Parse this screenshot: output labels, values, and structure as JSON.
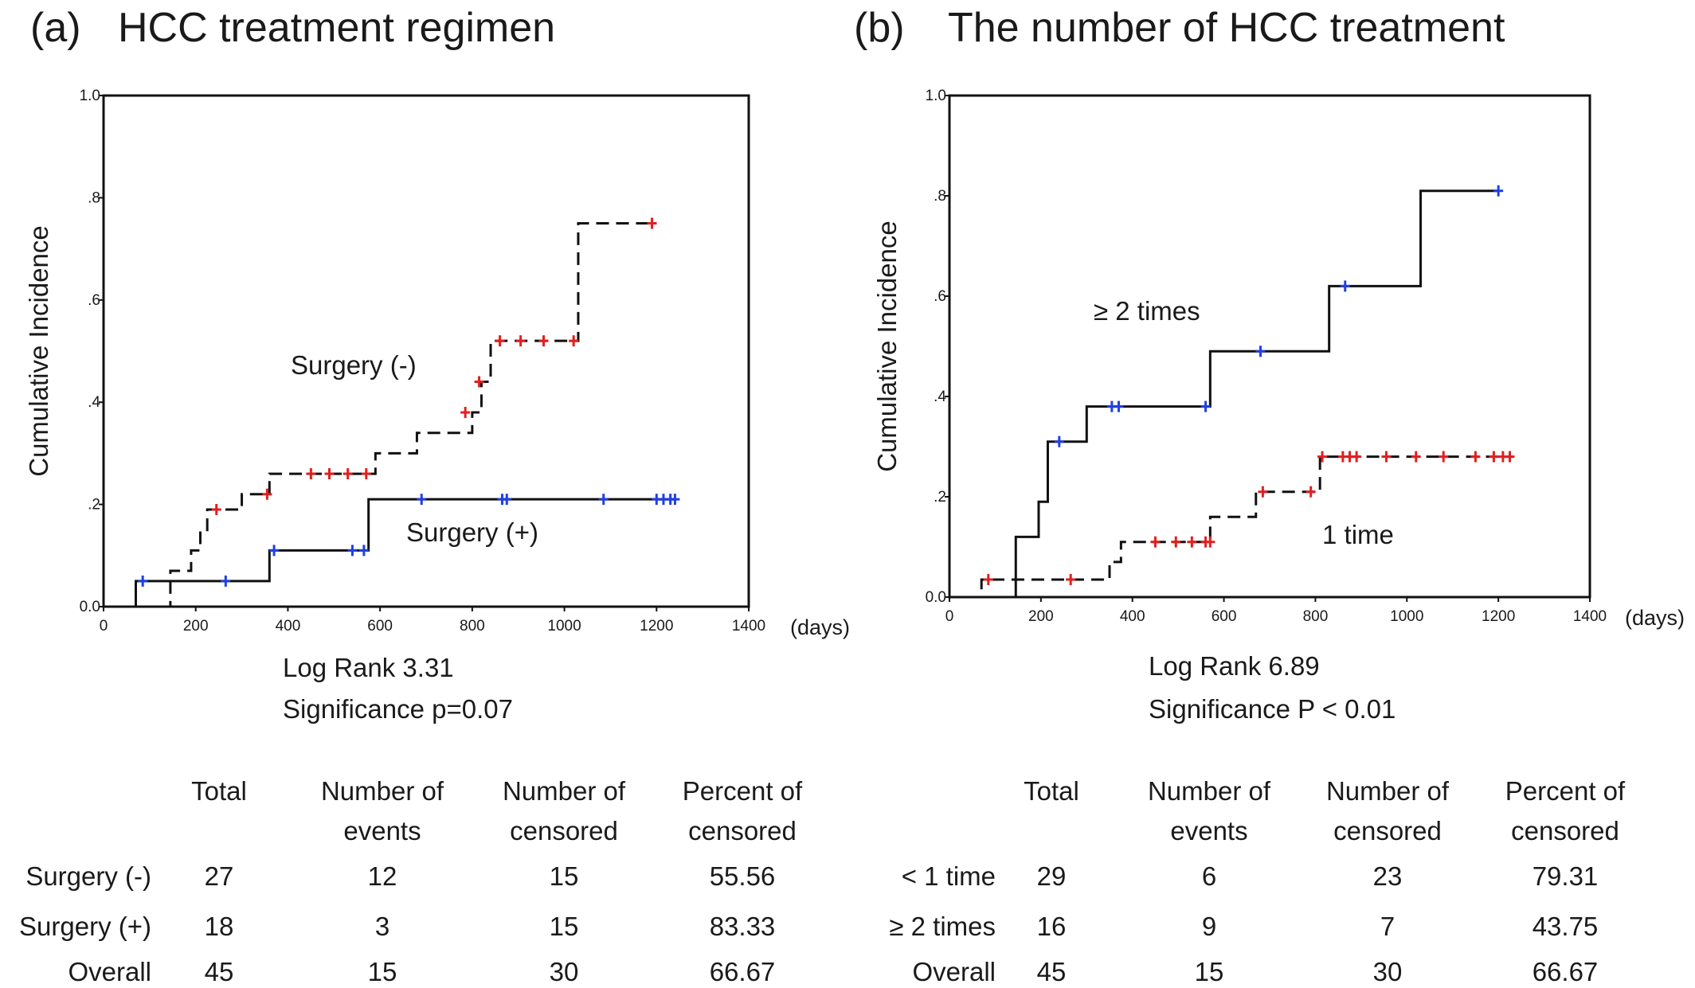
{
  "chart_data": [
    {
      "type": "step-line",
      "panel_label": "(a)",
      "title": "HCC treatment regimen",
      "ylabel": "Cumulative Incidence",
      "x_unit": "(days)",
      "xlim": [
        0,
        1400
      ],
      "ylim": [
        0,
        1.0
      ],
      "xticks": [
        0,
        200,
        400,
        600,
        800,
        1000,
        1200,
        1400
      ],
      "yticks": [
        0.0,
        0.2,
        0.4,
        0.6,
        0.8,
        1.0
      ],
      "ytick_labels": [
        "0.0",
        ".2",
        ".4",
        ".6",
        ".8",
        "1.0"
      ],
      "grid": false,
      "series": [
        {
          "label": "Surgery (-)",
          "style": "dashed",
          "censor_color": "#e02020",
          "steps": [
            [
              0,
              0.0
            ],
            [
              145,
              0.0
            ],
            [
              145,
              0.04
            ],
            [
              145,
              0.07
            ],
            [
              190,
              0.11
            ],
            [
              210,
              0.15
            ],
            [
              225,
              0.19
            ],
            [
              300,
              0.22
            ],
            [
              360,
              0.26
            ],
            [
              590,
              0.3
            ],
            [
              680,
              0.34
            ],
            [
              800,
              0.38
            ],
            [
              820,
              0.44
            ],
            [
              840,
              0.52
            ],
            [
              1030,
              0.52
            ],
            [
              1030,
              0.75
            ],
            [
              1190,
              0.75
            ]
          ],
          "censored": [
            [
              245,
              0.19
            ],
            [
              355,
              0.22
            ],
            [
              450,
              0.26
            ],
            [
              490,
              0.26
            ],
            [
              530,
              0.26
            ],
            [
              570,
              0.26
            ],
            [
              785,
              0.38
            ],
            [
              815,
              0.44
            ],
            [
              860,
              0.52
            ],
            [
              905,
              0.52
            ],
            [
              955,
              0.52
            ],
            [
              1020,
              0.52
            ],
            [
              1190,
              0.75
            ]
          ]
        },
        {
          "label": "Surgery (+)",
          "style": "solid",
          "censor_color": "#2040e0",
          "steps": [
            [
              0,
              0.0
            ],
            [
              70,
              0.0
            ],
            [
              70,
              0.05
            ],
            [
              360,
              0.05
            ],
            [
              360,
              0.11
            ],
            [
              575,
              0.11
            ],
            [
              575,
              0.21
            ],
            [
              1240,
              0.21
            ]
          ],
          "censored": [
            [
              85,
              0.05
            ],
            [
              265,
              0.05
            ],
            [
              370,
              0.11
            ],
            [
              540,
              0.11
            ],
            [
              565,
              0.11
            ],
            [
              690,
              0.21
            ],
            [
              865,
              0.21
            ],
            [
              875,
              0.21
            ],
            [
              1085,
              0.21
            ],
            [
              1200,
              0.21
            ],
            [
              1215,
              0.21
            ],
            [
              1230,
              0.21
            ],
            [
              1240,
              0.21
            ]
          ]
        }
      ],
      "stats": [
        "Log Rank 3.31",
        "Significance p=0.07"
      ],
      "table": {
        "columns": [
          [
            "Total"
          ],
          [
            "Number of",
            "events"
          ],
          [
            "Number of",
            "censored"
          ],
          [
            "Percent of",
            "censored"
          ]
        ],
        "rows": [
          {
            "label": "Surgery (-)",
            "values": [
              "27",
              "12",
              "15",
              "55.56"
            ]
          },
          {
            "label": "Surgery (+)",
            "values": [
              "18",
              "3",
              "15",
              "83.33"
            ]
          },
          {
            "label": "Overall",
            "values": [
              "45",
              "15",
              "30",
              "66.67"
            ]
          }
        ]
      }
    },
    {
      "type": "step-line",
      "panel_label": "(b)",
      "title": "The number of HCC treatment",
      "ylabel": "Cumulative Incidence",
      "x_unit": "(days)",
      "xlim": [
        0,
        1400
      ],
      "ylim": [
        0,
        1.0
      ],
      "xticks": [
        0,
        200,
        400,
        600,
        800,
        1000,
        1200,
        1400
      ],
      "yticks": [
        0.0,
        0.2,
        0.4,
        0.6,
        0.8,
        1.0
      ],
      "ytick_labels": [
        "0.0",
        ".2",
        ".4",
        ".6",
        ".8",
        "1.0"
      ],
      "grid": false,
      "series": [
        {
          "label": "≥ 2 times",
          "style": "solid",
          "censor_color": "#2040e0",
          "steps": [
            [
              0,
              0.0
            ],
            [
              145,
              0.0
            ],
            [
              145,
              0.12
            ],
            [
              195,
              0.12
            ],
            [
              195,
              0.19
            ],
            [
              215,
              0.19
            ],
            [
              215,
              0.31
            ],
            [
              300,
              0.31
            ],
            [
              300,
              0.38
            ],
            [
              570,
              0.38
            ],
            [
              570,
              0.49
            ],
            [
              830,
              0.49
            ],
            [
              830,
              0.62
            ],
            [
              1030,
              0.62
            ],
            [
              1030,
              0.81
            ],
            [
              1200,
              0.81
            ]
          ],
          "censored": [
            [
              240,
              0.31
            ],
            [
              355,
              0.38
            ],
            [
              370,
              0.38
            ],
            [
              560,
              0.38
            ],
            [
              680,
              0.49
            ],
            [
              865,
              0.62
            ],
            [
              1200,
              0.81
            ]
          ]
        },
        {
          "label": "1 time",
          "style": "dashed",
          "censor_color": "#e02020",
          "steps": [
            [
              0,
              0.0
            ],
            [
              70,
              0.0
            ],
            [
              70,
              0.035
            ],
            [
              350,
              0.035
            ],
            [
              350,
              0.07
            ],
            [
              375,
              0.07
            ],
            [
              375,
              0.11
            ],
            [
              570,
              0.11
            ],
            [
              570,
              0.16
            ],
            [
              670,
              0.16
            ],
            [
              670,
              0.21
            ],
            [
              810,
              0.21
            ],
            [
              810,
              0.28
            ],
            [
              1230,
              0.28
            ]
          ],
          "censored": [
            [
              85,
              0.035
            ],
            [
              265,
              0.035
            ],
            [
              450,
              0.11
            ],
            [
              495,
              0.11
            ],
            [
              530,
              0.11
            ],
            [
              560,
              0.11
            ],
            [
              570,
              0.11
            ],
            [
              685,
              0.21
            ],
            [
              790,
              0.21
            ],
            [
              815,
              0.28
            ],
            [
              860,
              0.28
            ],
            [
              875,
              0.28
            ],
            [
              890,
              0.28
            ],
            [
              955,
              0.28
            ],
            [
              1020,
              0.28
            ],
            [
              1080,
              0.28
            ],
            [
              1150,
              0.28
            ],
            [
              1190,
              0.28
            ],
            [
              1210,
              0.28
            ],
            [
              1225,
              0.28
            ]
          ]
        }
      ],
      "stats": [
        "Log Rank 6.89",
        "Significance P < 0.01"
      ],
      "table": {
        "columns": [
          [
            "Total"
          ],
          [
            "Number of",
            "events"
          ],
          [
            "Number of",
            "censored"
          ],
          [
            "Percent of",
            "censored"
          ]
        ],
        "rows": [
          {
            "label": "< 1 time",
            "values": [
              "29",
              "6",
              "23",
              "79.31"
            ]
          },
          {
            "label": "≥ 2 times",
            "values": [
              "16",
              "9",
              "7",
              "43.75"
            ]
          },
          {
            "label": "Overall",
            "values": [
              "45",
              "15",
              "30",
              "66.67"
            ]
          }
        ]
      }
    }
  ]
}
